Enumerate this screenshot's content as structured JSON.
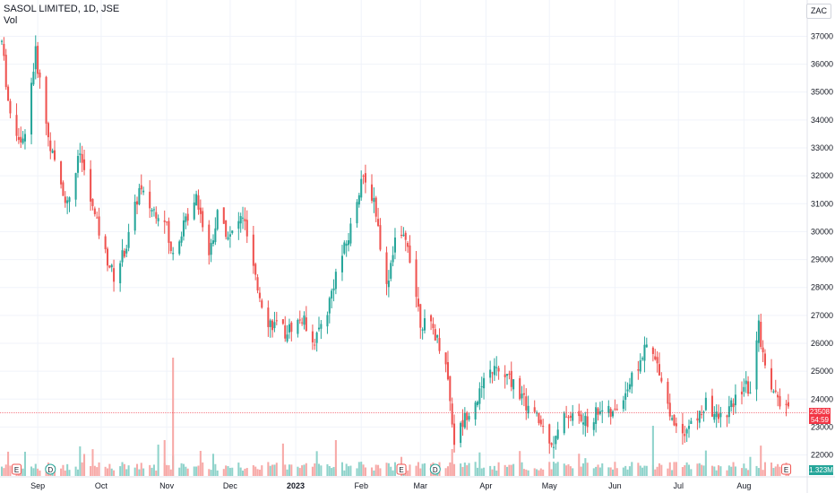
{
  "header": {
    "title": "SASOL LIMITED, 1D, JSE",
    "vol_label": "Vol"
  },
  "currency_button": "ZAC",
  "price_tag": {
    "price": "23508",
    "countdown": "54:59"
  },
  "volume_tag": "1.323M",
  "colors": {
    "up": "#26a69a",
    "down": "#ef5350",
    "up_vol": "#8fd3cb",
    "down_vol": "#f7a9a7",
    "grid": "#f0f3fa",
    "axis": "#e0e3eb",
    "tag": "#f23645"
  },
  "event_markers": [
    {
      "type": "earnings",
      "label": "E",
      "date": "2022-08-22"
    },
    {
      "type": "dividend",
      "label": "D",
      "date": "2022-09-07"
    },
    {
      "type": "earnings",
      "label": "E",
      "date": "2023-02-20"
    },
    {
      "type": "dividend",
      "label": "D",
      "date": "2023-03-08"
    },
    {
      "type": "earnings",
      "label": "E",
      "date": "2023-08-21"
    }
  ],
  "chart_data": {
    "type": "candlestick",
    "symbol": "SASOL LIMITED",
    "interval": "1D",
    "exchange": "JSE",
    "currency": "ZAC",
    "y_ticks": [
      22000,
      23000,
      24000,
      25000,
      26000,
      27000,
      28000,
      29000,
      30000,
      31000,
      32000,
      33000,
      34000,
      35000,
      36000,
      37000
    ],
    "ylim": [
      21600,
      37400
    ],
    "x_ticks": [
      {
        "label": "Sep",
        "month": "2022-09"
      },
      {
        "label": "Oct",
        "month": "2022-10"
      },
      {
        "label": "Nov",
        "month": "2022-11"
      },
      {
        "label": "Dec",
        "month": "2022-12"
      },
      {
        "label": "2023",
        "month": "2023-01"
      },
      {
        "label": "Feb",
        "month": "2023-02"
      },
      {
        "label": "Mar",
        "month": "2023-03"
      },
      {
        "label": "Apr",
        "month": "2023-04"
      },
      {
        "label": "May",
        "month": "2023-05"
      },
      {
        "label": "Jun",
        "month": "2023-06"
      },
      {
        "label": "Jul",
        "month": "2023-07"
      },
      {
        "label": "Aug",
        "month": "2023-08"
      }
    ],
    "close_path": [
      [
        "2022-08-15",
        36800
      ],
      [
        "2022-08-19",
        34000
      ],
      [
        "2022-08-25",
        33200
      ],
      [
        "2022-08-31",
        36400
      ],
      [
        "2022-09-06",
        33400
      ],
      [
        "2022-09-09",
        32400
      ],
      [
        "2022-09-15",
        31000
      ],
      [
        "2022-09-21",
        32800
      ],
      [
        "2022-09-27",
        30800
      ],
      [
        "2022-10-03",
        29200
      ],
      [
        "2022-10-07",
        28400
      ],
      [
        "2022-10-13",
        29500
      ],
      [
        "2022-10-19",
        31500
      ],
      [
        "2022-10-25",
        30800
      ],
      [
        "2022-10-31",
        30600
      ],
      [
        "2022-11-03",
        29200
      ],
      [
        "2022-11-09",
        30200
      ],
      [
        "2022-11-15",
        31400
      ],
      [
        "2022-11-21",
        29200
      ],
      [
        "2022-11-25",
        30600
      ],
      [
        "2022-12-01",
        29800
      ],
      [
        "2022-12-07",
        30600
      ],
      [
        "2022-12-13",
        28200
      ],
      [
        "2022-12-19",
        26800
      ],
      [
        "2022-12-27",
        26400
      ],
      [
        "2023-01-04",
        26900
      ],
      [
        "2023-01-10",
        26100
      ],
      [
        "2023-01-16",
        27200
      ],
      [
        "2023-01-20",
        28500
      ],
      [
        "2023-01-26",
        29800
      ],
      [
        "2023-02-01",
        31900
      ],
      [
        "2023-02-07",
        31200
      ],
      [
        "2023-02-13",
        28000
      ],
      [
        "2023-02-17",
        29800
      ],
      [
        "2023-02-23",
        29600
      ],
      [
        "2023-03-01",
        26800
      ],
      [
        "2023-03-07",
        26500
      ],
      [
        "2023-03-13",
        25400
      ],
      [
        "2023-03-17",
        22500
      ],
      [
        "2023-03-23",
        23500
      ],
      [
        "2023-03-29",
        24200
      ],
      [
        "2023-04-04",
        25100
      ],
      [
        "2023-04-10",
        24800
      ],
      [
        "2023-04-14",
        24600
      ],
      [
        "2023-04-20",
        23800
      ],
      [
        "2023-04-26",
        23200
      ],
      [
        "2023-05-03",
        22400
      ],
      [
        "2023-05-09",
        23500
      ],
      [
        "2023-05-15",
        23300
      ],
      [
        "2023-05-19",
        23100
      ],
      [
        "2023-05-25",
        23700
      ],
      [
        "2023-05-31",
        23400
      ],
      [
        "2023-06-06",
        24300
      ],
      [
        "2023-06-12",
        25200
      ],
      [
        "2023-06-16",
        25900
      ],
      [
        "2023-06-22",
        25100
      ],
      [
        "2023-06-28",
        23200
      ],
      [
        "2023-07-04",
        22900
      ],
      [
        "2023-07-10",
        23300
      ],
      [
        "2023-07-14",
        23800
      ],
      [
        "2023-07-20",
        23300
      ],
      [
        "2023-07-26",
        23700
      ],
      [
        "2023-08-01",
        24500
      ],
      [
        "2023-08-04",
        24300
      ],
      [
        "2023-08-08",
        26600
      ],
      [
        "2023-08-11",
        25100
      ],
      [
        "2023-08-16",
        24100
      ],
      [
        "2023-08-22",
        23500
      ]
    ],
    "last_price": 23508,
    "last_volume": "1.323M"
  }
}
